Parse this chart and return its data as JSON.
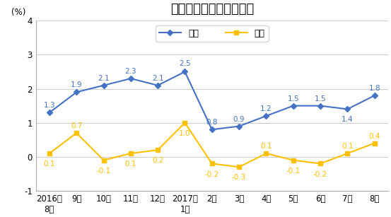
{
  "title": "全国居民消费价格涨跌幅",
  "ylabel": "(%)",
  "x_labels": [
    "2016年\n8月",
    "9月",
    "10月",
    "11月",
    "12月",
    "2017年\n1月",
    "2月",
    "3月",
    "4月",
    "5月",
    "6月",
    "7月",
    "8月"
  ],
  "yoy_values": [
    1.3,
    1.9,
    2.1,
    2.3,
    2.1,
    2.5,
    0.8,
    0.9,
    1.2,
    1.5,
    1.5,
    1.4,
    1.8
  ],
  "mom_values": [
    0.1,
    0.7,
    -0.1,
    0.1,
    0.2,
    1.0,
    -0.2,
    -0.3,
    0.1,
    -0.1,
    -0.2,
    0.1,
    0.4
  ],
  "yoy_color": "#4472C4",
  "mom_color": "#FFC000",
  "yoy_label": "同比",
  "mom_label": "环比",
  "ylim": [
    -1,
    4
  ],
  "yticks": [
    -1,
    0,
    1,
    2,
    3,
    4
  ],
  "background_color": "#FFFFFF",
  "plot_bg_color": "#FFFFFF",
  "grid_color": "#CCCCCC",
  "title_fontsize": 13,
  "label_fontsize": 8.5,
  "annotation_fontsize": 7.5,
  "legend_fontsize": 9
}
